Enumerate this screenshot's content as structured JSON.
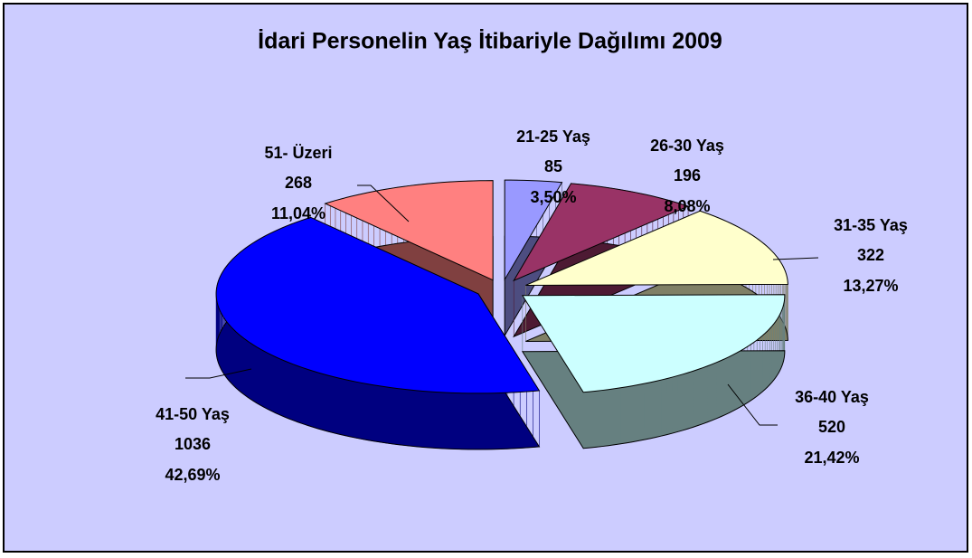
{
  "chart_data": {
    "type": "pie3d",
    "title": "İdari Personelin Yaş İtibariyle Dağılımı 2009",
    "categories": [
      "21-25 Yaş",
      "26-30 Yaş",
      "31-35 Yaş",
      "36-40 Yaş",
      "41-50 Yaş",
      "51- Üzeri"
    ],
    "values": [
      85,
      196,
      322,
      520,
      1036,
      268
    ],
    "percents": [
      3.5,
      8.08,
      13.27,
      21.42,
      42.69,
      11.04
    ],
    "percent_labels": [
      "3,50%",
      "8,08%",
      "13,27%",
      "21,42%",
      "42,69%",
      "11,04%"
    ],
    "colors": [
      "#9999ff",
      "#993366",
      "#ffffcc",
      "#ccffff",
      "#0000ff",
      "#ff8080"
    ],
    "side_colors": [
      "#4d4d80",
      "#4d1a33",
      "#808066",
      "#668080",
      "#000080",
      "#804040"
    ]
  }
}
